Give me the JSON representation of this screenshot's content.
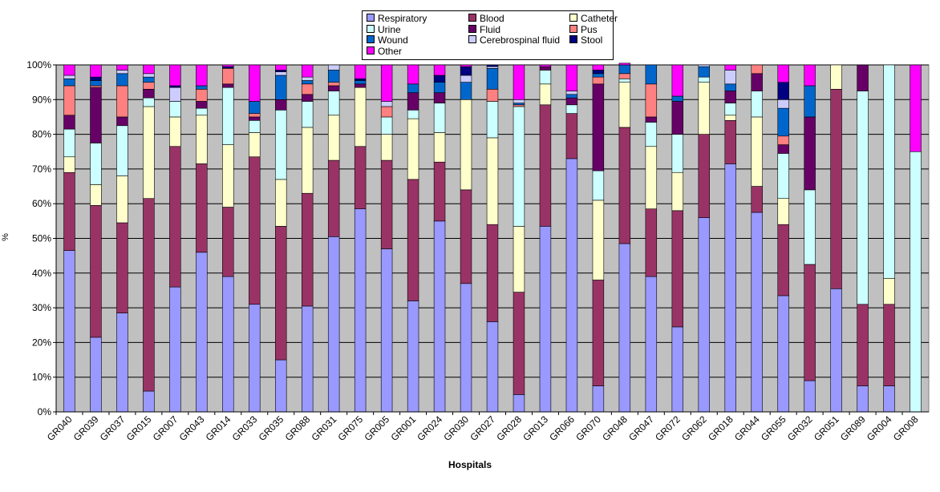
{
  "chart_data": {
    "type": "bar",
    "stacked": true,
    "title": "",
    "xlabel": "Hospitals",
    "ylabel": "%",
    "ylim": [
      0,
      100
    ],
    "yticks": [
      "0%",
      "10%",
      "20%",
      "30%",
      "40%",
      "50%",
      "60%",
      "70%",
      "80%",
      "90%",
      "100%"
    ],
    "grid": true,
    "legend_position": "top",
    "categories": [
      "GR040",
      "GR039",
      "GR037",
      "GR015",
      "GR007",
      "GR043",
      "GR014",
      "GR033",
      "GR035",
      "GR088",
      "GR031",
      "GR075",
      "GR005",
      "GR001",
      "GR024",
      "GR030",
      "GR027",
      "GR028",
      "GR013",
      "GR066",
      "GR070",
      "GR048",
      "GR047",
      "GR072",
      "GR062",
      "GR018",
      "GR044",
      "GR055",
      "GR032",
      "GR051",
      "GR089",
      "GR004",
      "GR008"
    ],
    "series": [
      {
        "name": "Respiratory",
        "color": "#9999ff",
        "values": [
          46.5,
          21.5,
          28.5,
          6,
          36,
          46,
          39,
          31,
          15,
          30.5,
          50.5,
          58.5,
          47,
          32,
          55,
          37,
          26,
          5,
          53.5,
          73,
          7.5,
          48.5,
          39,
          24.5,
          56,
          71.5,
          57.5,
          33.5,
          9,
          35.5,
          7.5,
          7.5,
          0
        ]
      },
      {
        "name": "Blood",
        "color": "#993366",
        "values": [
          22.5,
          38,
          26,
          55.5,
          40.5,
          25.5,
          20,
          42.5,
          38.5,
          32.5,
          22,
          18,
          25.5,
          35,
          17,
          27,
          28,
          29.5,
          35,
          13,
          30.5,
          33.5,
          19.5,
          33.5,
          24,
          12.5,
          7.5,
          20.5,
          33.5,
          57.5,
          23.5,
          23.5,
          0
        ]
      },
      {
        "name": "Catheter",
        "color": "#ffffcc",
        "values": [
          4.5,
          6,
          13.5,
          26.5,
          8.5,
          14,
          18,
          7,
          13.5,
          19,
          13,
          17,
          7.5,
          17.5,
          8.5,
          26,
          25,
          19,
          6,
          0,
          23,
          13,
          18,
          11,
          15,
          1.5,
          20,
          7.5,
          0,
          7,
          0,
          7.5,
          0
        ]
      },
      {
        "name": "Urine",
        "color": "#ccffff",
        "values": [
          8,
          12,
          14.5,
          2.5,
          4.5,
          2,
          16.5,
          3.5,
          20,
          7.5,
          7,
          0,
          5,
          2.5,
          8.5,
          0,
          10.5,
          34.5,
          4,
          2.5,
          8.5,
          1,
          7,
          11,
          1.5,
          3.5,
          7.5,
          13,
          21.5,
          0,
          61.5,
          61.5,
          75
        ]
      },
      {
        "name": "Fluid",
        "color": "#660066",
        "values": [
          4,
          16,
          2.5,
          2.5,
          0,
          2,
          1,
          1,
          3,
          2,
          1.5,
          1,
          0,
          5,
          3,
          0,
          0,
          0,
          1,
          2,
          25,
          0,
          1.5,
          9.5,
          0,
          3.5,
          5,
          2.5,
          21,
          0,
          7.5,
          0,
          0
        ]
      },
      {
        "name": "Pus",
        "color": "#ff8080",
        "values": [
          8.5,
          0.5,
          9,
          2,
          0,
          3.5,
          4.5,
          1,
          0,
          3,
          1,
          0,
          3,
          0,
          0,
          0,
          3.5,
          0.5,
          0,
          0,
          2,
          1.5,
          9.5,
          0,
          0,
          0,
          2.5,
          2.5,
          0,
          0,
          0,
          0,
          0
        ]
      },
      {
        "name": "Wound",
        "color": "#0066cc",
        "values": [
          2,
          1.5,
          3.5,
          1.5,
          0,
          1,
          0,
          3.5,
          7,
          1,
          3.5,
          1,
          0,
          2.5,
          3,
          5,
          6,
          0.5,
          0,
          1,
          1,
          2.5,
          5.5,
          1.5,
          3,
          2,
          0,
          8,
          9,
          0,
          0,
          0,
          0
        ]
      },
      {
        "name": "Cerebrospinal fluid",
        "color": "#ccccff",
        "values": [
          1,
          0,
          1,
          1,
          4,
          0,
          0,
          0,
          1,
          1,
          1.5,
          0,
          1.5,
          0,
          0,
          2,
          0.5,
          1,
          0,
          1,
          0,
          0,
          0,
          0,
          0.5,
          4,
          0,
          2.5,
          0,
          0,
          0,
          0,
          0
        ]
      },
      {
        "name": "Stool",
        "color": "#000080",
        "values": [
          0,
          1,
          0,
          0,
          0.5,
          0,
          0.5,
          0,
          0.5,
          0,
          0,
          0.5,
          0,
          0,
          2,
          2.5,
          0.5,
          0,
          0,
          0,
          1,
          0,
          0,
          0,
          0,
          0,
          0,
          5,
          0,
          0,
          0,
          0,
          0
        ]
      },
      {
        "name": "Other",
        "color": "#ff00ff",
        "values": [
          3,
          3.5,
          1.5,
          2.5,
          6,
          6,
          0.5,
          10.5,
          1.5,
          3.5,
          0,
          4,
          10.5,
          5.5,
          3,
          0.5,
          0,
          10,
          0.5,
          7.5,
          1.5,
          0.5,
          0,
          9,
          0,
          1.5,
          0,
          5,
          6,
          0,
          0,
          0,
          25
        ]
      }
    ],
    "plot_background": "#c0c0c0"
  }
}
